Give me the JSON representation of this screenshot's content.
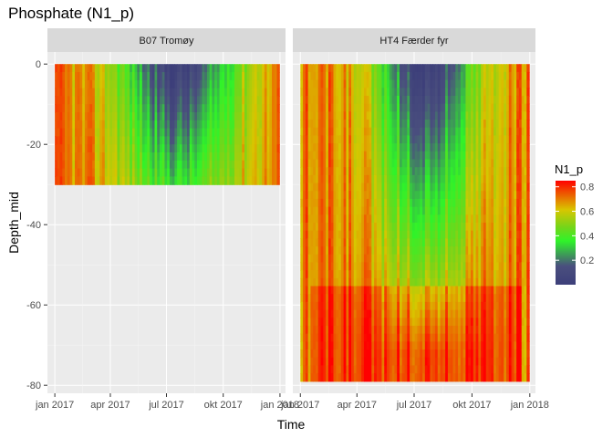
{
  "chart_data": {
    "type": "heatmap",
    "title": "Phosphate (N1_p)",
    "xlabel": "Time",
    "ylabel": "Depth_mid",
    "x_ticks": [
      "jan 2017",
      "apr 2017",
      "jul 2017",
      "okt 2017",
      "jan 2018"
    ],
    "x_range": [
      "2016-12-20",
      "2018-01-10"
    ],
    "y_ticks": [
      0,
      -20,
      -40,
      -60,
      -80
    ],
    "ylim": [
      -82,
      3
    ],
    "facets": [
      {
        "label": "B07 Tromøy",
        "x_start": "2017-01-01",
        "x_end": "2017-12-31",
        "depth_min": -30,
        "depth_max": 0
      },
      {
        "label": "HT4 Færder fyr",
        "x_start": "2017-01-01",
        "x_end": "2017-12-31",
        "depth_min": -79,
        "depth_max": 0
      }
    ],
    "legend": {
      "title": "N1_p",
      "ticks": [
        0.2,
        0.4,
        0.6,
        0.8
      ],
      "range": [
        0.0,
        0.85
      ],
      "colors": [
        "#3d3f7a",
        "#4a4f7e",
        "#2ff32a",
        "#73d51a",
        "#d8c600",
        "#ff0000"
      ],
      "position": "right"
    },
    "grid": true,
    "panel_background": "#ebebeb",
    "strip_background": "#d9d9d9"
  }
}
